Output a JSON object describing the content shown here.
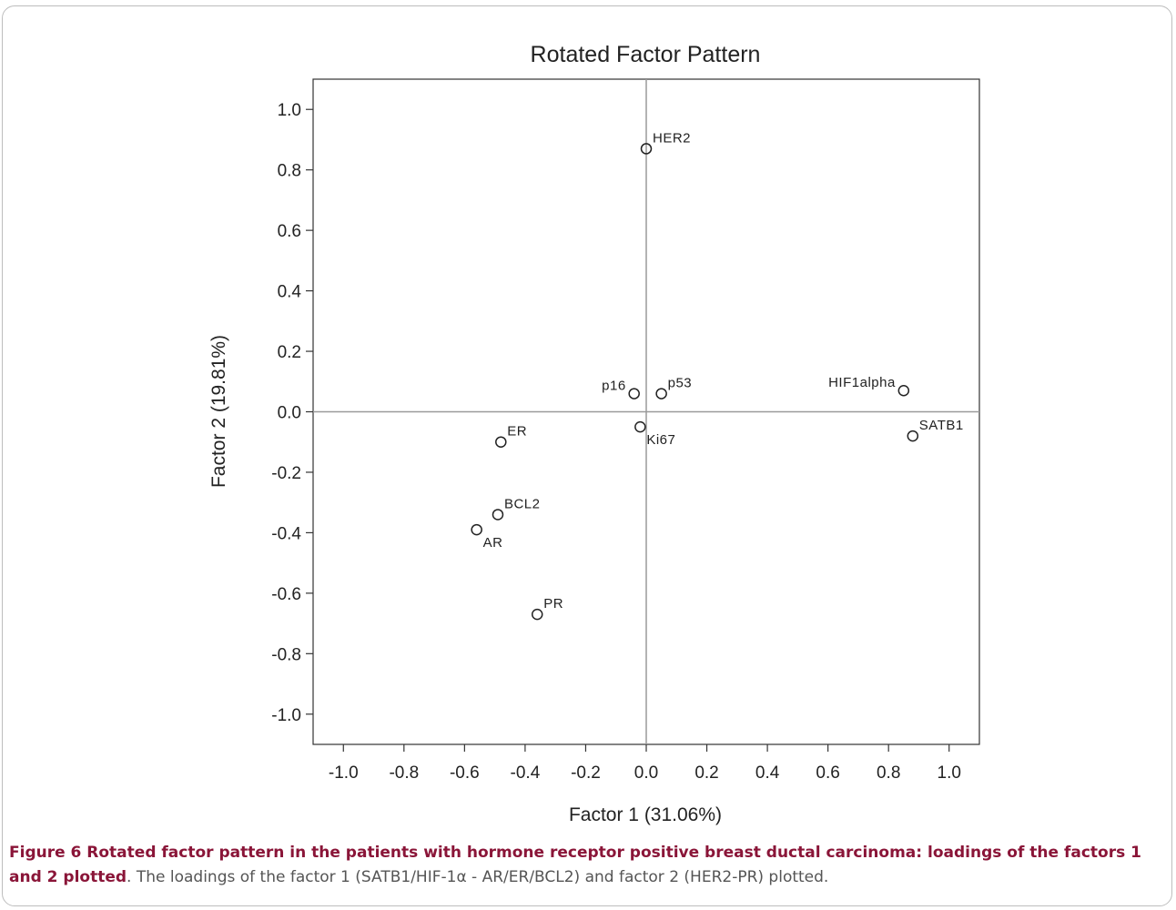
{
  "chart_data": {
    "type": "scatter",
    "title": "Rotated Factor Pattern",
    "xlabel": "Factor 1 (31.06%)",
    "ylabel": "Factor 2 (19.81%)",
    "xlim": [
      -1.1,
      1.1
    ],
    "ylim": [
      -1.1,
      1.1
    ],
    "xticks": [
      "-1.0",
      "-0.8",
      "-0.6",
      "-0.4",
      "-0.2",
      "0.0",
      "0.2",
      "0.4",
      "0.6",
      "0.8",
      "1.0"
    ],
    "yticks": [
      "1.0",
      "0.8",
      "0.6",
      "0.4",
      "0.2",
      "0.0",
      "-0.2",
      "-0.4",
      "-0.6",
      "-0.8",
      "-1.0"
    ],
    "grid": false,
    "reference_lines": {
      "x": 0,
      "y": 0
    },
    "points": [
      {
        "label": "HER2",
        "x": 0.0,
        "y": 0.87,
        "label_pos": "upper-right"
      },
      {
        "label": "p16",
        "x": -0.04,
        "y": 0.06,
        "label_pos": "left"
      },
      {
        "label": "p53",
        "x": 0.05,
        "y": 0.06,
        "label_pos": "upper-right"
      },
      {
        "label": "HIF1alpha",
        "x": 0.85,
        "y": 0.07,
        "label_pos": "left"
      },
      {
        "label": "Ki67",
        "x": -0.02,
        "y": -0.05,
        "label_pos": "lower-right"
      },
      {
        "label": "SATB1",
        "x": 0.88,
        "y": -0.08,
        "label_pos": "upper-right"
      },
      {
        "label": "ER",
        "x": -0.48,
        "y": -0.1,
        "label_pos": "upper-right"
      },
      {
        "label": "BCL2",
        "x": -0.49,
        "y": -0.34,
        "label_pos": "upper-right"
      },
      {
        "label": "AR",
        "x": -0.56,
        "y": -0.39,
        "label_pos": "lower-right"
      },
      {
        "label": "PR",
        "x": -0.36,
        "y": -0.67,
        "label_pos": "upper-right"
      }
    ]
  },
  "caption": {
    "bold": "Figure 6 Rotated factor pattern in the patients with hormone receptor positive breast ductal carcinoma: loadings of the factors 1 and 2 plotted",
    "rest": ". The loadings of the factor 1 (SATB1/HIF-1α - AR/ER/BCL2) and factor 2 (HER2-PR) plotted."
  }
}
